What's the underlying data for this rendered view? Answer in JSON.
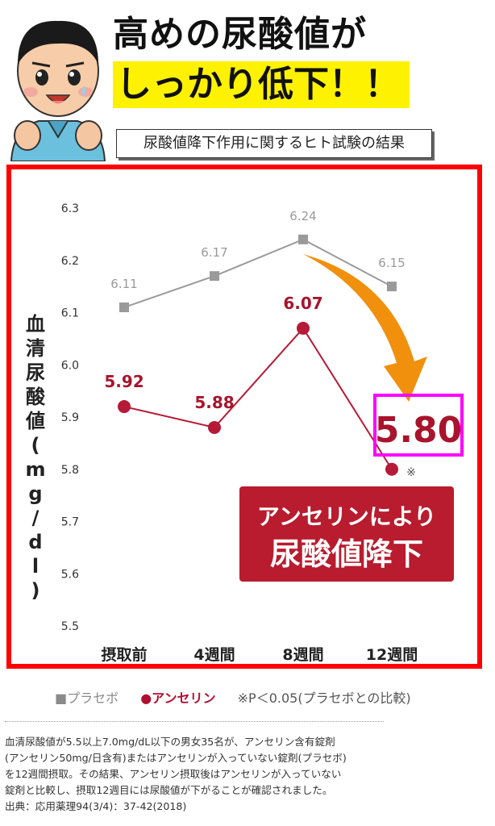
{
  "header": {
    "headline_line1": "高めの尿酸値が",
    "headline_line2": "しっかり低下！！",
    "subtitle": "尿酸値降下作用に関するヒト試験の結果"
  },
  "chart_data": {
    "type": "line",
    "ylabel": "血清尿酸値(mg/dl)",
    "ylim": [
      5.5,
      6.3
    ],
    "yticks": [
      "5.5",
      "5.6",
      "5.7",
      "5.8",
      "5.9",
      "6.0",
      "6.1",
      "6.2",
      "6.3"
    ],
    "categories": [
      "摂取前",
      "4週間",
      "8週間",
      "12週間"
    ],
    "series": [
      {
        "name": "プラセボ",
        "values": [
          6.11,
          6.17,
          6.24,
          6.15
        ],
        "labels": [
          "6.11",
          "6.17",
          "6.24",
          "6.15"
        ],
        "color": "#9a9a9a",
        "marker": "square"
      },
      {
        "name": "アンセリン",
        "values": [
          5.92,
          5.88,
          6.07,
          5.8
        ],
        "labels": [
          "5.92",
          "5.88",
          "6.07",
          "5.80"
        ],
        "color": "#b51a36",
        "marker": "circle"
      }
    ],
    "significance_mark": "※",
    "highlight_value": "5.80",
    "callout_line1": "アンセリンにより",
    "callout_line2": "尿酸値降下",
    "grid": false
  },
  "legend": {
    "placebo": "■プラセボ",
    "anserine": "●アンセリン",
    "note": "※P＜0.05(プラセボとの比較)"
  },
  "footnote": {
    "line1": "血清尿酸値が5.5以上7.0mg/dL以下の男女35名が、アンセリン含有錠剤",
    "line2": "(アンセリン50mg/日含有)またはアンセリンが入っていない錠剤(プラセボ)",
    "line3": "を12週間摂取。その結果、アンセリン摂取後はアンセリンが入っていない",
    "line4": "錠剤と比較し、摂取12週目には尿酸値が下がることが確認されました。",
    "line5": "出典：応用薬理94(3/4)：37-42(2018)"
  },
  "colors": {
    "frame": "#ff0000",
    "highlight": "#ff00ff",
    "callout": "#b81c2e",
    "arrow": "#ef8a00",
    "headline_bg": "#fff200"
  }
}
